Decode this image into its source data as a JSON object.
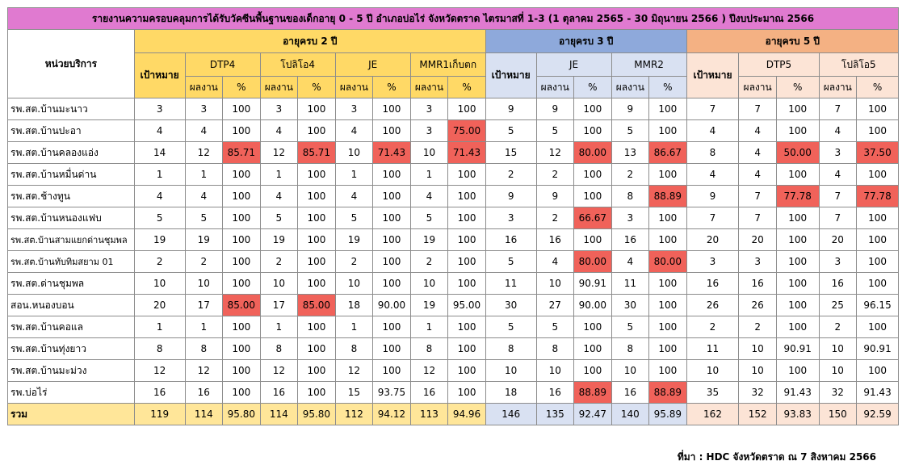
{
  "title": "รายงานความครอบคลุมการได้รับวัคซีนพื้นฐานของเด็กอายุ 0 - 5 ปี อำเภอบ่อไร่ จังหวัดตราด ไตรมาสที่ 1-3 (1 ตุลาคม 2565 - 30 มิถุนายน 2566 ) ปีงบประมาณ 2566",
  "headers": {
    "unit": "หน่วยบริการ",
    "age2": "อายุครบ 2 ปี",
    "age3": "อายุครบ 3 ปี",
    "age5": "อายุครบ 5 ปี",
    "target": "เป้าหมาย",
    "result": "ผลงาน",
    "percent": "%",
    "v2": [
      "DTP4",
      "โปลิโอ4",
      "JE",
      "MMR1เก็บตก"
    ],
    "v3": [
      "JE",
      "MMR2"
    ],
    "v5": [
      "DTP5",
      "โปลิโอ5"
    ]
  },
  "rows": [
    {
      "name": "รพ.สต.บ้านมะนาว",
      "v": [
        "3",
        "3",
        "100",
        "3",
        "100",
        "3",
        "100",
        "3",
        "100",
        "9",
        "9",
        "100",
        "9",
        "100",
        "7",
        "7",
        "100",
        "7",
        "100"
      ],
      "red": []
    },
    {
      "name": "รพ.สต.บ้านปะอา",
      "v": [
        "4",
        "4",
        "100",
        "4",
        "100",
        "4",
        "100",
        "3",
        "75.00",
        "5",
        "5",
        "100",
        "5",
        "100",
        "4",
        "4",
        "100",
        "4",
        "100"
      ],
      "red": [
        8
      ]
    },
    {
      "name": "รพ.สต.บ้านคลองแอ่ง",
      "v": [
        "14",
        "12",
        "85.71",
        "12",
        "85.71",
        "10",
        "71.43",
        "10",
        "71.43",
        "15",
        "12",
        "80.00",
        "13",
        "86.67",
        "8",
        "4",
        "50.00",
        "3",
        "37.50"
      ],
      "red": [
        2,
        4,
        6,
        8,
        11,
        13,
        16,
        18
      ]
    },
    {
      "name": "รพ.สต.บ้านหมื่นด่าน",
      "v": [
        "1",
        "1",
        "100",
        "1",
        "100",
        "1",
        "100",
        "1",
        "100",
        "2",
        "2",
        "100",
        "2",
        "100",
        "4",
        "4",
        "100",
        "4",
        "100"
      ],
      "red": []
    },
    {
      "name": "รพ.สต.ช้างทูน",
      "v": [
        "4",
        "4",
        "100",
        "4",
        "100",
        "4",
        "100",
        "4",
        "100",
        "9",
        "9",
        "100",
        "8",
        "88.89",
        "9",
        "7",
        "77.78",
        "7",
        "77.78"
      ],
      "red": [
        13,
        16,
        18
      ]
    },
    {
      "name": "รพ.สต.บ้านหนองแฟบ",
      "v": [
        "5",
        "5",
        "100",
        "5",
        "100",
        "5",
        "100",
        "5",
        "100",
        "3",
        "2",
        "66.67",
        "3",
        "100",
        "7",
        "7",
        "100",
        "7",
        "100"
      ],
      "red": [
        11
      ]
    },
    {
      "name": "รพ.สต.บ้านสามแยกด่านชุมพล",
      "v": [
        "19",
        "19",
        "100",
        "19",
        "100",
        "19",
        "100",
        "19",
        "100",
        "16",
        "16",
        "100",
        "16",
        "100",
        "20",
        "20",
        "100",
        "20",
        "100"
      ],
      "red": [],
      "small": true
    },
    {
      "name": "รพ.สต.บ้านทับทิมสยาม 01",
      "v": [
        "2",
        "2",
        "100",
        "2",
        "100",
        "2",
        "100",
        "2",
        "100",
        "5",
        "4",
        "80.00",
        "4",
        "80.00",
        "3",
        "3",
        "100",
        "3",
        "100"
      ],
      "red": [
        11,
        13
      ],
      "small": true
    },
    {
      "name": "รพ.สต.ด่านชุมพล",
      "v": [
        "10",
        "10",
        "100",
        "10",
        "100",
        "10",
        "100",
        "10",
        "100",
        "11",
        "10",
        "90.91",
        "11",
        "100",
        "16",
        "16",
        "100",
        "16",
        "100"
      ],
      "red": []
    },
    {
      "name": "สอน.หนองบอน",
      "v": [
        "20",
        "17",
        "85.00",
        "17",
        "85.00",
        "18",
        "90.00",
        "19",
        "95.00",
        "30",
        "27",
        "90.00",
        "30",
        "100",
        "26",
        "26",
        "100",
        "25",
        "96.15"
      ],
      "red": [
        2,
        4
      ]
    },
    {
      "name": "รพ.สต.บ้านคอแล",
      "v": [
        "1",
        "1",
        "100",
        "1",
        "100",
        "1",
        "100",
        "1",
        "100",
        "5",
        "5",
        "100",
        "5",
        "100",
        "2",
        "2",
        "100",
        "2",
        "100"
      ],
      "red": []
    },
    {
      "name": "รพ.สต.บ้านทุ่งยาว",
      "v": [
        "8",
        "8",
        "100",
        "8",
        "100",
        "8",
        "100",
        "8",
        "100",
        "8",
        "8",
        "100",
        "8",
        "100",
        "11",
        "10",
        "90.91",
        "10",
        "90.91"
      ],
      "red": []
    },
    {
      "name": "รพ.สต.บ้านมะม่วง",
      "v": [
        "12",
        "12",
        "100",
        "12",
        "100",
        "12",
        "100",
        "12",
        "100",
        "10",
        "10",
        "100",
        "10",
        "100",
        "10",
        "10",
        "100",
        "10",
        "100"
      ],
      "red": []
    },
    {
      "name": "รพ.บ่อไร่",
      "v": [
        "16",
        "16",
        "100",
        "16",
        "100",
        "15",
        "93.75",
        "16",
        "100",
        "18",
        "16",
        "88.89",
        "16",
        "88.89",
        "35",
        "32",
        "91.43",
        "32",
        "91.43"
      ],
      "red": [
        11,
        13
      ]
    }
  ],
  "total": {
    "name": "รวม",
    "v": [
      "119",
      "114",
      "95.80",
      "114",
      "95.80",
      "112",
      "94.12",
      "113",
      "94.96",
      "146",
      "135",
      "92.47",
      "140",
      "95.89",
      "162",
      "152",
      "93.83",
      "150",
      "92.59"
    ]
  },
  "source": "ที่มา : HDC จังหวัดตราด ณ 7 สิงหาคม  2566",
  "colors": {
    "title": "#e07ad0",
    "age2": "#ffd966",
    "age2_light": "#ffe699",
    "age3": "#8ea9db",
    "age3_light": "#d9e1f2",
    "age5": "#f4b183",
    "age5_light": "#fce4d6",
    "below_target": "#f0625a"
  }
}
